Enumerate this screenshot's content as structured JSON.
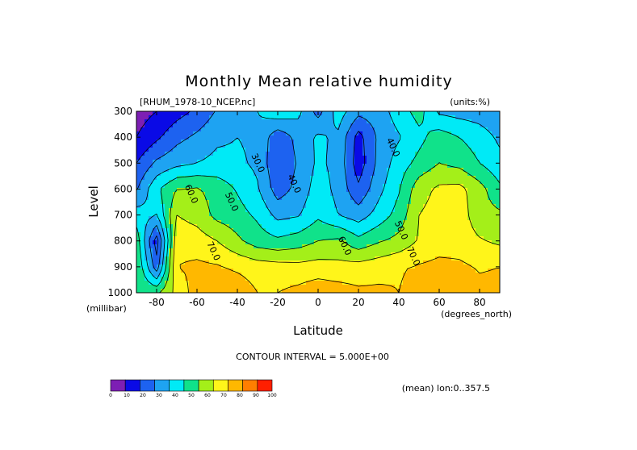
{
  "chart_data": {
    "type": "heatmap",
    "title": "Monthly Mean relative humidity",
    "file_label": "[RHUM_1978-10_NCEP.nc]",
    "units_label": "(units:%)",
    "xlabel": "Latitude",
    "ylabel": "Level",
    "x_units_label": "(degrees_north)",
    "y_units_label": "(millibar)",
    "xlim": [
      -90,
      90
    ],
    "ylim": [
      1000,
      300
    ],
    "x_ticks": [
      -80,
      -60,
      -40,
      -20,
      0,
      20,
      40,
      60,
      80
    ],
    "x_tick_labels": [
      "-80",
      "-60",
      "-40",
      "-20",
      "0",
      "20",
      "40",
      "60",
      "80"
    ],
    "y_ticks": [
      300,
      400,
      500,
      600,
      700,
      800,
      900,
      1000
    ],
    "y_tick_labels": [
      "300",
      "400",
      "500",
      "600",
      "700",
      "800",
      "900",
      "1000"
    ],
    "contour_interval_text": "CONTOUR INTERVAL = 5.000E+00",
    "mean_note": "(mean) lon:0..357.5",
    "contour_labels": [
      {
        "text": "30.0",
        "lat": -30,
        "level": 500
      },
      {
        "text": "40.0",
        "lat": -12,
        "level": 580
      },
      {
        "text": "40.0",
        "lat": 37,
        "level": 440
      },
      {
        "text": "50.0",
        "lat": -43,
        "level": 650
      },
      {
        "text": "50.0",
        "lat": 41,
        "level": 760
      },
      {
        "text": "60.0",
        "lat": -63,
        "level": 620
      },
      {
        "text": "60.0",
        "lat": 13,
        "level": 820
      },
      {
        "text": "70.0",
        "lat": -52,
        "level": 840
      },
      {
        "text": "70.0",
        "lat": 47,
        "level": 860
      }
    ],
    "colorbar": {
      "boundaries": [
        0,
        10,
        20,
        30,
        40,
        50,
        60,
        70,
        80,
        90,
        100
      ],
      "labels": [
        "0",
        "10",
        "20",
        "30",
        "40",
        "50",
        "60",
        "70",
        "80",
        "90",
        "100"
      ],
      "colors": [
        "#7d1fb4",
        "#0a0ae6",
        "#1d62f0",
        "#1ea3f2",
        "#00eaf6",
        "#10e28a",
        "#a4ef19",
        "#fff51a",
        "#ffb800",
        "#ff7e00",
        "#ff1f00"
      ]
    },
    "grid": {
      "lats": [
        -90,
        -80,
        -70,
        -60,
        -50,
        -40,
        -30,
        -20,
        -10,
        0,
        10,
        20,
        30,
        40,
        50,
        60,
        70,
        80,
        90
      ],
      "levels": [
        300,
        400,
        500,
        600,
        700,
        800,
        900,
        1000
      ],
      "values": [
        [
          5,
          10,
          16,
          22,
          31,
          36,
          40,
          47,
          43,
          26,
          45,
          33,
          35,
          45,
          54,
          38,
          36,
          35,
          32
        ],
        [
          10,
          18,
          27,
          32,
          38,
          40,
          38,
          23,
          33,
          42,
          38,
          16,
          32,
          39,
          47,
          55,
          50,
          45,
          38
        ],
        [
          20,
          32,
          37,
          40,
          43,
          42,
          38,
          21,
          31,
          42,
          37,
          14,
          33,
          45,
          53,
          60,
          57,
          50,
          43
        ],
        [
          29,
          48,
          60,
          61,
          56,
          49,
          41,
          25,
          33,
          45,
          37,
          22,
          37,
          49,
          66,
          72,
          73,
          64,
          52
        ],
        [
          45,
          40,
          70,
          66,
          57,
          54,
          48,
          37,
          39,
          48,
          40,
          35,
          44,
          54,
          70,
          74,
          75,
          64,
          62
        ],
        [
          56,
          15,
          77,
          75,
          70,
          62,
          55,
          52,
          55,
          60,
          62,
          53,
          59,
          63,
          71,
          75,
          75,
          71,
          68
        ],
        [
          60,
          24,
          80,
          82,
          81,
          78,
          75,
          74,
          73,
          74,
          73,
          74,
          76,
          79,
          81,
          83,
          82,
          79,
          80
        ],
        [
          60,
          58,
          73,
          85,
          88,
          87,
          80,
          80,
          83,
          87,
          85,
          82,
          82,
          80,
          84,
          88,
          89,
          83,
          83
        ]
      ]
    }
  }
}
